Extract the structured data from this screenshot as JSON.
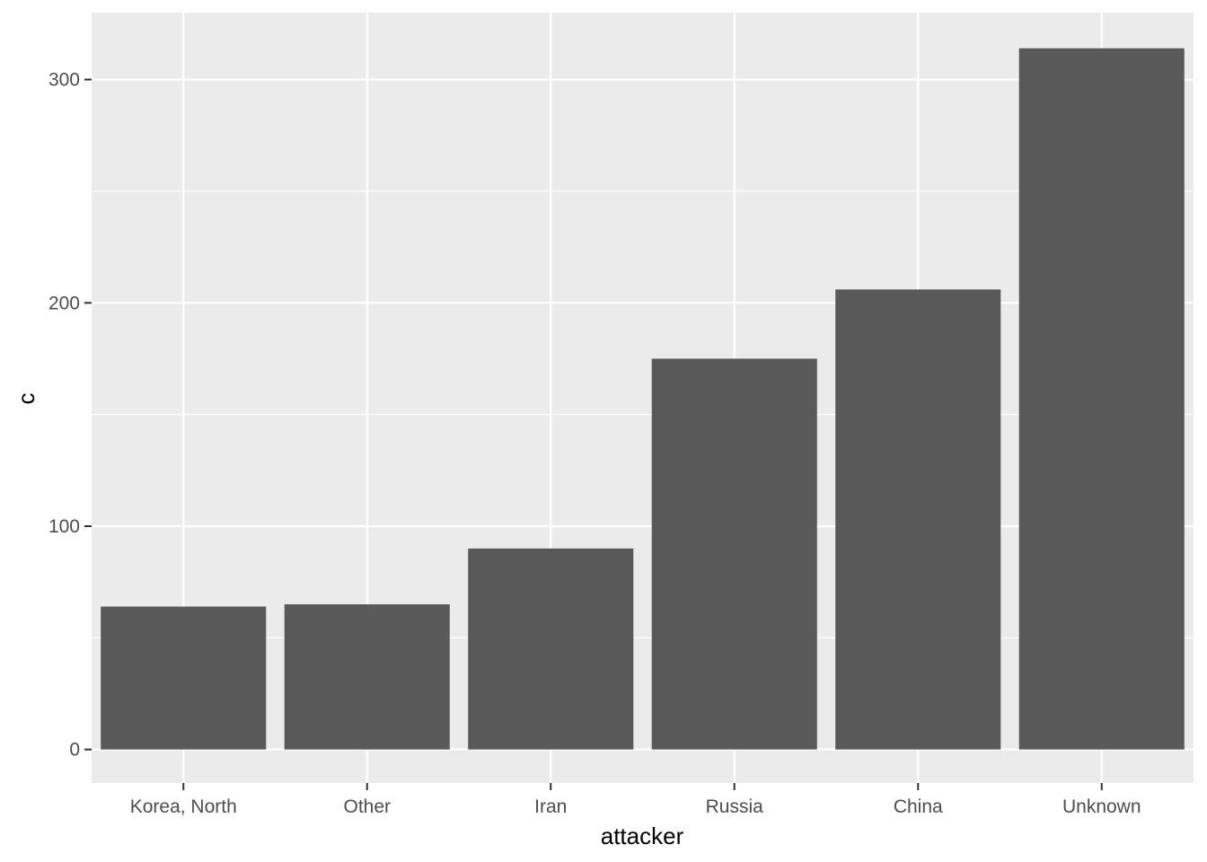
{
  "chart_data": {
    "type": "bar",
    "title": "",
    "xlabel": "attacker",
    "ylabel": "c",
    "categories": [
      "Korea, North",
      "Other",
      "Iran",
      "Russia",
      "China",
      "Unknown"
    ],
    "values": [
      64,
      65,
      90,
      175,
      206,
      314
    ],
    "ylim": [
      -15,
      330
    ],
    "yticks": [
      0,
      100,
      200,
      300
    ],
    "grid": true,
    "legend": "none",
    "colors": {
      "bar": "#595959",
      "panel": "#ebebeb",
      "grid": "#ffffff",
      "tick": "#333333"
    }
  }
}
